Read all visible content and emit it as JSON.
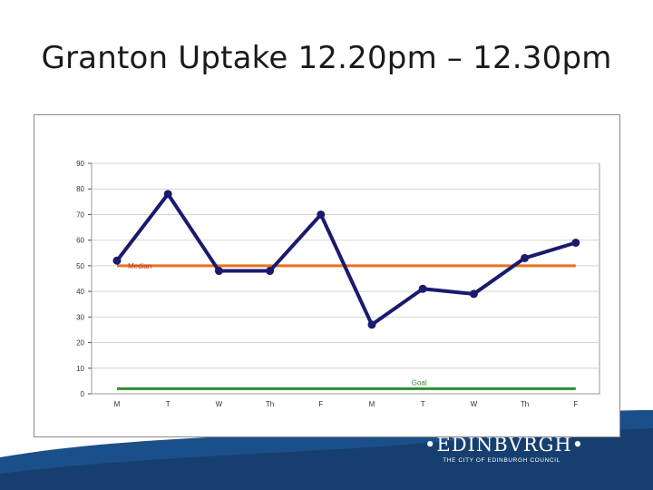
{
  "slide": {
    "title": "Granton Uptake 12.20pm – 12.30pm"
  },
  "branding": {
    "name": "•EDINBVRGH•",
    "subtitle": "THE CITY OF EDINBURGH COUNCIL"
  },
  "colors": {
    "series_line": "#1a1a6e",
    "median_line": "#e8721c",
    "goal_line": "#2e8b2e",
    "median_label": "#c0392b",
    "goal_label": "#2e8b2e",
    "footer": "#1b4f8a"
  },
  "chart_data": {
    "type": "line",
    "title": "",
    "xlabel": "",
    "ylabel": "",
    "ylim": [
      0,
      90
    ],
    "yticks": [
      0,
      10,
      20,
      30,
      40,
      50,
      60,
      70,
      80,
      90
    ],
    "categories": [
      "M",
      "T",
      "W",
      "Th",
      "F",
      "M",
      "T",
      "W",
      "Th",
      "F"
    ],
    "grid": true,
    "series": [
      {
        "values": [
          52,
          78,
          48,
          48,
          70,
          27,
          41,
          39,
          53,
          59
        ]
      }
    ],
    "reference_lines": [
      {
        "name": "Median",
        "value": 50
      },
      {
        "name": "Goal",
        "value": 2
      }
    ]
  }
}
